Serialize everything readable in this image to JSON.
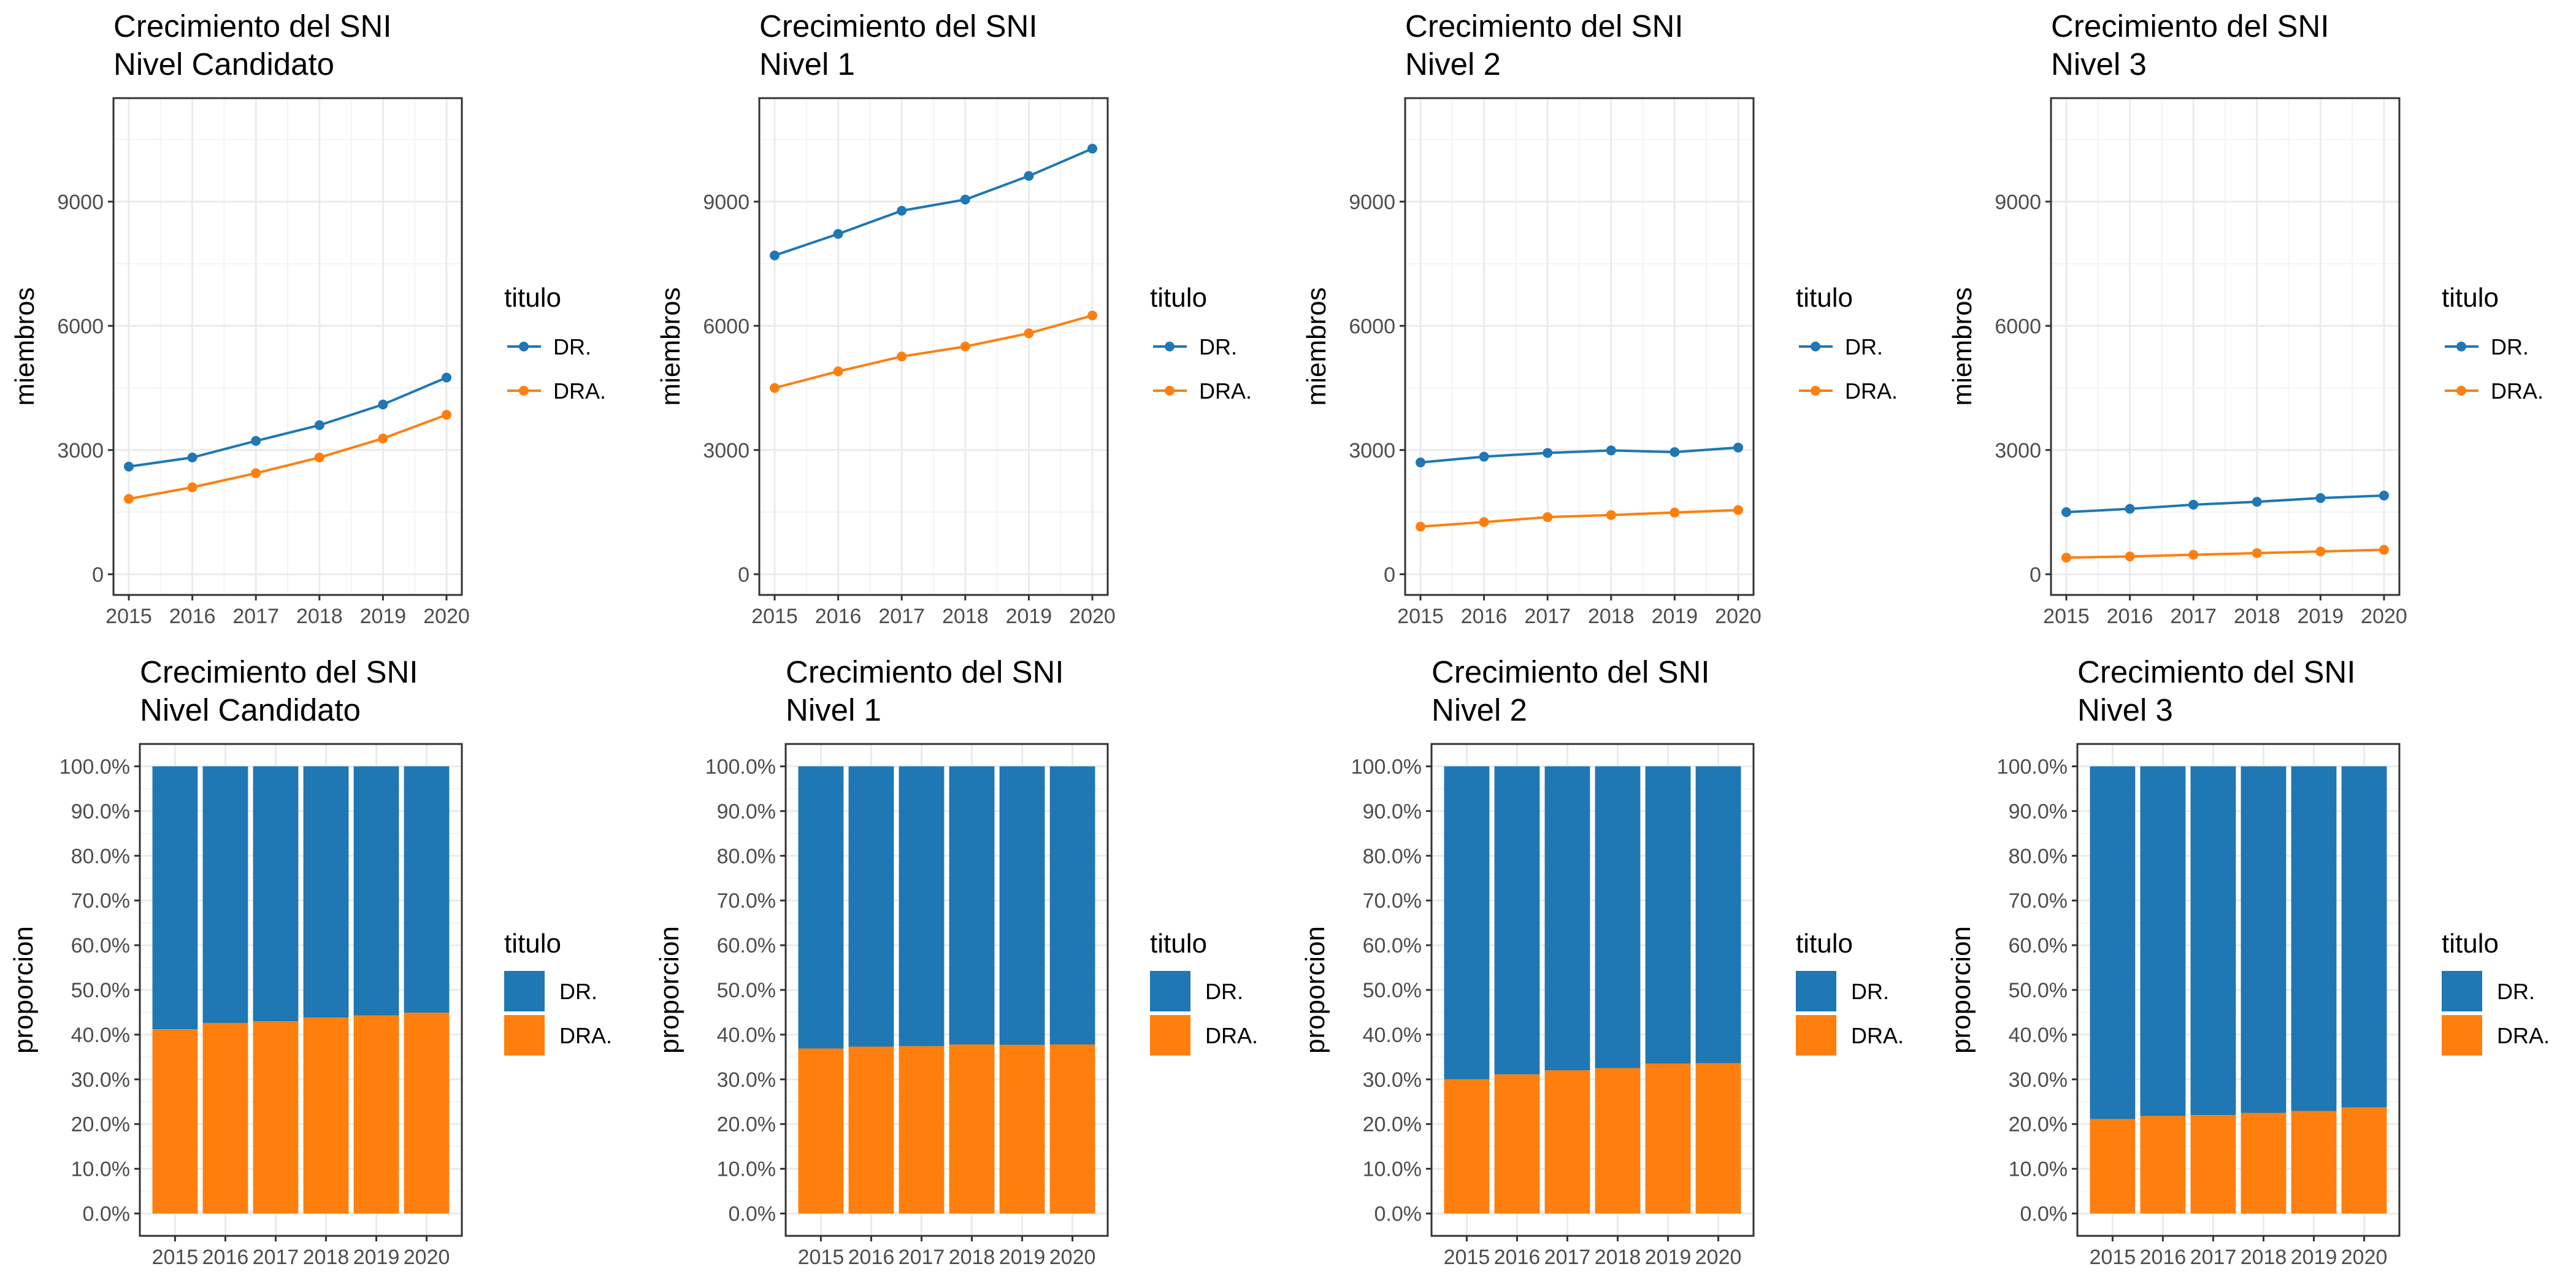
{
  "colors": {
    "dr": "#1f77b4",
    "dra": "#ff7f0e",
    "grid_major": "#ebebeb",
    "grid_minor": "#f4f4f4",
    "border": "#333333"
  },
  "chart_data": [
    {
      "type": "line",
      "title": "Crecimiento del SNI\nNivel Candidato",
      "ylabel": "miembros",
      "xlabel": "",
      "x": [
        "2015",
        "2016",
        "2017",
        "2018",
        "2019",
        "2020"
      ],
      "ylim": [
        -500,
        11500
      ],
      "yticks": [
        0,
        3000,
        6000,
        9000
      ],
      "legend_title": "titulo",
      "series": [
        {
          "name": "DR.",
          "values": [
            2600,
            2820,
            3220,
            3600,
            4100,
            4750
          ]
        },
        {
          "name": "DRA.",
          "values": [
            1820,
            2100,
            2440,
            2820,
            3280,
            3850
          ]
        }
      ],
      "grid": true
    },
    {
      "type": "line",
      "title": "Crecimiento del SNI\nNivel 1",
      "ylabel": "miembros",
      "xlabel": "",
      "x": [
        "2015",
        "2016",
        "2017",
        "2018",
        "2019",
        "2020"
      ],
      "ylim": [
        -500,
        11500
      ],
      "yticks": [
        0,
        3000,
        6000,
        9000
      ],
      "legend_title": "titulo",
      "series": [
        {
          "name": "DR.",
          "values": [
            7700,
            8220,
            8780,
            9050,
            9620,
            10280
          ]
        },
        {
          "name": "DRA.",
          "values": [
            4500,
            4900,
            5260,
            5500,
            5820,
            6250
          ]
        }
      ],
      "grid": true
    },
    {
      "type": "line",
      "title": "Crecimiento del SNI\nNivel 2",
      "ylabel": "miembros",
      "xlabel": "",
      "x": [
        "2015",
        "2016",
        "2017",
        "2018",
        "2019",
        "2020"
      ],
      "ylim": [
        -500,
        11500
      ],
      "yticks": [
        0,
        3000,
        6000,
        9000
      ],
      "legend_title": "titulo",
      "series": [
        {
          "name": "DR.",
          "values": [
            2700,
            2840,
            2930,
            2990,
            2950,
            3060
          ]
        },
        {
          "name": "DRA.",
          "values": [
            1150,
            1260,
            1380,
            1430,
            1490,
            1550
          ]
        }
      ],
      "grid": true
    },
    {
      "type": "line",
      "title": "Crecimiento del SNI\nNivel 3",
      "ylabel": "miembros",
      "xlabel": "",
      "x": [
        "2015",
        "2016",
        "2017",
        "2018",
        "2019",
        "2020"
      ],
      "ylim": [
        -500,
        11500
      ],
      "yticks": [
        0,
        3000,
        6000,
        9000
      ],
      "legend_title": "titulo",
      "series": [
        {
          "name": "DR.",
          "values": [
            1500,
            1580,
            1680,
            1750,
            1840,
            1900
          ]
        },
        {
          "name": "DRA.",
          "values": [
            400,
            430,
            470,
            510,
            550,
            590
          ]
        }
      ],
      "grid": true
    },
    {
      "type": "bar",
      "stacked": true,
      "title": "Crecimiento del SNI\nNivel Candidato",
      "ylabel": "proporcion",
      "xlabel": "",
      "categories": [
        "2015",
        "2016",
        "2017",
        "2018",
        "2019",
        "2020"
      ],
      "ylim": [
        -0.05,
        1.05
      ],
      "yticks": [
        "0.0%",
        "10.0%",
        "20.0%",
        "30.0%",
        "40.0%",
        "50.0%",
        "60.0%",
        "70.0%",
        "80.0%",
        "90.0%",
        "100.0%"
      ],
      "legend_title": "titulo",
      "series": [
        {
          "name": "DR.",
          "values": [
            0.588,
            0.574,
            0.57,
            0.562,
            0.557,
            0.551
          ]
        },
        {
          "name": "DRA.",
          "values": [
            0.412,
            0.426,
            0.43,
            0.438,
            0.443,
            0.449
          ]
        }
      ],
      "grid": true
    },
    {
      "type": "bar",
      "stacked": true,
      "title": "Crecimiento del SNI\nNivel 1",
      "ylabel": "proporcion",
      "xlabel": "",
      "categories": [
        "2015",
        "2016",
        "2017",
        "2018",
        "2019",
        "2020"
      ],
      "ylim": [
        -0.05,
        1.05
      ],
      "yticks": [
        "0.0%",
        "10.0%",
        "20.0%",
        "30.0%",
        "40.0%",
        "50.0%",
        "60.0%",
        "70.0%",
        "80.0%",
        "90.0%",
        "100.0%"
      ],
      "legend_title": "titulo",
      "series": [
        {
          "name": "DR.",
          "values": [
            0.631,
            0.627,
            0.626,
            0.622,
            0.623,
            0.622
          ]
        },
        {
          "name": "DRA.",
          "values": [
            0.369,
            0.373,
            0.374,
            0.378,
            0.377,
            0.378
          ]
        }
      ],
      "grid": true
    },
    {
      "type": "bar",
      "stacked": true,
      "title": "Crecimiento del SNI\nNivel 2",
      "ylabel": "proporcion",
      "xlabel": "",
      "categories": [
        "2015",
        "2016",
        "2017",
        "2018",
        "2019",
        "2020"
      ],
      "ylim": [
        -0.05,
        1.05
      ],
      "yticks": [
        "0.0%",
        "10.0%",
        "20.0%",
        "30.0%",
        "40.0%",
        "50.0%",
        "60.0%",
        "70.0%",
        "80.0%",
        "90.0%",
        "100.0%"
      ],
      "legend_title": "titulo",
      "series": [
        {
          "name": "DR.",
          "values": [
            0.7,
            0.689,
            0.68,
            0.675,
            0.665,
            0.664
          ]
        },
        {
          "name": "DRA.",
          "values": [
            0.3,
            0.311,
            0.32,
            0.325,
            0.335,
            0.336
          ]
        }
      ],
      "grid": true
    },
    {
      "type": "bar",
      "stacked": true,
      "title": "Crecimiento del SNI\nNivel 3",
      "ylabel": "proporcion",
      "xlabel": "",
      "categories": [
        "2015",
        "2016",
        "2017",
        "2018",
        "2019",
        "2020"
      ],
      "ylim": [
        -0.05,
        1.05
      ],
      "yticks": [
        "0.0%",
        "10.0%",
        "20.0%",
        "30.0%",
        "40.0%",
        "50.0%",
        "60.0%",
        "70.0%",
        "80.0%",
        "90.0%",
        "100.0%"
      ],
      "legend_title": "titulo",
      "series": [
        {
          "name": "DR.",
          "values": [
            0.789,
            0.782,
            0.78,
            0.775,
            0.771,
            0.763
          ]
        },
        {
          "name": "DRA.",
          "values": [
            0.211,
            0.218,
            0.22,
            0.225,
            0.229,
            0.237
          ]
        }
      ],
      "grid": true
    }
  ]
}
